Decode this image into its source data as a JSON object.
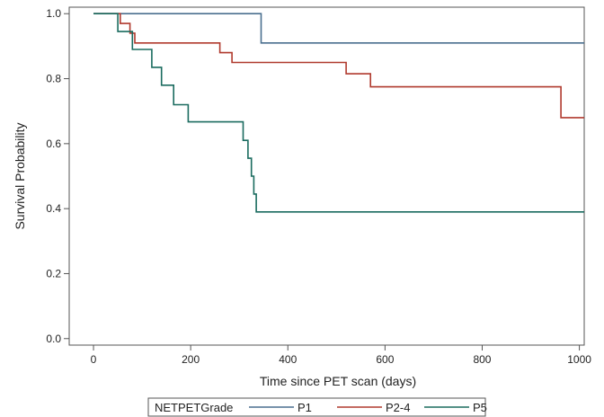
{
  "chart_data": {
    "type": "line",
    "title": "",
    "xlabel": "Time since PET scan (days)",
    "ylabel": "Survival Probability",
    "xlim": [
      -50,
      1010
    ],
    "ylim": [
      -0.02,
      1.02
    ],
    "x_ticks": [
      0,
      200,
      400,
      600,
      800,
      1000
    ],
    "y_ticks": [
      0.0,
      0.2,
      0.4,
      0.6,
      0.8,
      1.0
    ],
    "x_tick_labels": [
      "0",
      "200",
      "400",
      "600",
      "800",
      "1000"
    ],
    "y_tick_labels": [
      "0.0",
      "0.2",
      "0.4",
      "0.6",
      "0.8",
      "1.0"
    ],
    "grid": false,
    "legend": {
      "title": "NETPETGrade",
      "placement": "bottom"
    },
    "series": [
      {
        "name": "P1",
        "color": "#4a6f8f",
        "step": true,
        "points": [
          [
            0,
            1.0
          ],
          [
            345,
            1.0
          ],
          [
            345,
            0.91
          ],
          [
            1010,
            0.91
          ]
        ]
      },
      {
        "name": "P2-4",
        "color": "#b03a2e",
        "step": true,
        "points": [
          [
            0,
            1.0
          ],
          [
            55,
            1.0
          ],
          [
            55,
            0.97
          ],
          [
            75,
            0.97
          ],
          [
            75,
            0.94
          ],
          [
            85,
            0.94
          ],
          [
            85,
            0.91
          ],
          [
            260,
            0.91
          ],
          [
            260,
            0.88
          ],
          [
            285,
            0.88
          ],
          [
            285,
            0.85
          ],
          [
            520,
            0.85
          ],
          [
            520,
            0.815
          ],
          [
            570,
            0.815
          ],
          [
            570,
            0.775
          ],
          [
            962,
            0.775
          ],
          [
            962,
            0.68
          ],
          [
            1010,
            0.68
          ]
        ]
      },
      {
        "name": "P5",
        "color": "#1a6b5f",
        "step": true,
        "points": [
          [
            0,
            1.0
          ],
          [
            50,
            1.0
          ],
          [
            50,
            0.945
          ],
          [
            80,
            0.945
          ],
          [
            80,
            0.89
          ],
          [
            120,
            0.89
          ],
          [
            120,
            0.835
          ],
          [
            140,
            0.835
          ],
          [
            140,
            0.78
          ],
          [
            165,
            0.78
          ],
          [
            165,
            0.72
          ],
          [
            195,
            0.72
          ],
          [
            195,
            0.667
          ],
          [
            308,
            0.667
          ],
          [
            308,
            0.61
          ],
          [
            318,
            0.61
          ],
          [
            318,
            0.555
          ],
          [
            325,
            0.555
          ],
          [
            325,
            0.5
          ],
          [
            330,
            0.5
          ],
          [
            330,
            0.445
          ],
          [
            335,
            0.445
          ],
          [
            335,
            0.39
          ],
          [
            1010,
            0.39
          ]
        ]
      }
    ]
  }
}
